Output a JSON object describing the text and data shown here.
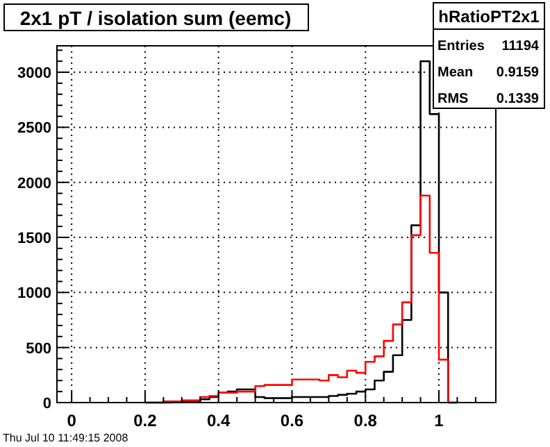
{
  "chart_data": {
    "type": "histogram",
    "title": "2x1 pT / isolation sum (eemc)",
    "bins": [
      0.2,
      0.225,
      0.25,
      0.275,
      0.3,
      0.325,
      0.35,
      0.375,
      0.4,
      0.425,
      0.45,
      0.475,
      0.5,
      0.525,
      0.55,
      0.575,
      0.6,
      0.625,
      0.65,
      0.675,
      0.7,
      0.725,
      0.75,
      0.775,
      0.8,
      0.825,
      0.85,
      0.875,
      0.9,
      0.925,
      0.95,
      0.975,
      1.0,
      1.025,
      1.05
    ],
    "series": [
      {
        "color": "#000000",
        "values": [
          0,
          0,
          0,
          10,
          10,
          10,
          30,
          50,
          90,
          100,
          120,
          120,
          50,
          40,
          40,
          40,
          50,
          50,
          50,
          50,
          60,
          70,
          80,
          100,
          120,
          200,
          280,
          430,
          750,
          1610,
          3100,
          2620,
          1000,
          0
        ]
      },
      {
        "color": "#ff0000",
        "values": [
          0,
          0,
          10,
          10,
          20,
          20,
          50,
          60,
          90,
          90,
          100,
          100,
          150,
          160,
          160,
          160,
          210,
          210,
          210,
          200,
          250,
          230,
          290,
          270,
          370,
          420,
          560,
          710,
          910,
          1520,
          1880,
          1360,
          390,
          0
        ]
      }
    ],
    "xlim": [
      -0.04,
      1.155
    ],
    "xticks": [
      0,
      {
        "value": 0.05,
        "label": null
      },
      {
        "value": 0.1,
        "label": null
      },
      {
        "value": 0.15,
        "label": null
      },
      0.2,
      {
        "value": 0.25,
        "label": null
      },
      {
        "value": 0.3,
        "label": null
      },
      {
        "value": 0.35,
        "label": null
      },
      0.4,
      {
        "value": 0.45,
        "label": null
      },
      {
        "value": 0.5,
        "label": null
      },
      {
        "value": 0.55,
        "label": null
      },
      0.6,
      {
        "value": 0.65,
        "label": null
      },
      {
        "value": 0.7,
        "label": null
      },
      {
        "value": 0.75,
        "label": null
      },
      0.8,
      {
        "value": 0.85,
        "label": null
      },
      {
        "value": 0.9,
        "label": null
      },
      {
        "value": 0.95,
        "label": null
      },
      1,
      {
        "value": 1.05,
        "label": null
      },
      {
        "value": 1.1,
        "label": null
      }
    ],
    "ylim": [
      0,
      3240
    ],
    "yticks": [
      0,
      {
        "value": 100,
        "label": null
      },
      {
        "value": 200,
        "label": null
      },
      {
        "value": 300,
        "label": null
      },
      {
        "value": 400,
        "label": null
      },
      500,
      {
        "value": 600,
        "label": null
      },
      {
        "value": 700,
        "label": null
      },
      {
        "value": 800,
        "label": null
      },
      {
        "value": 900,
        "label": null
      },
      1000,
      {
        "value": 1100,
        "label": null
      },
      {
        "value": 1200,
        "label": null
      },
      {
        "value": 1300,
        "label": null
      },
      {
        "value": 1400,
        "label": null
      },
      1500,
      {
        "value": 1600,
        "label": null
      },
      {
        "value": 1700,
        "label": null
      },
      {
        "value": 1800,
        "label": null
      },
      {
        "value": 1900,
        "label": null
      },
      2000,
      {
        "value": 2100,
        "label": null
      },
      {
        "value": 2200,
        "label": null
      },
      {
        "value": 2300,
        "label": null
      },
      {
        "value": 2400,
        "label": null
      },
      2500,
      {
        "value": 2600,
        "label": null
      },
      {
        "value": 2700,
        "label": null
      },
      {
        "value": 2800,
        "label": null
      },
      {
        "value": 2900,
        "label": null
      },
      3000,
      {
        "value": 3100,
        "label": null
      },
      {
        "value": 3200,
        "label": null
      }
    ],
    "grid": true,
    "annotations": [
      "hRatioPT2x1",
      "Entries",
      "11194",
      "Mean",
      "0.9159",
      "RMS",
      "0.1339",
      "Thu Jul 10 11:49:15 2008"
    ]
  }
}
